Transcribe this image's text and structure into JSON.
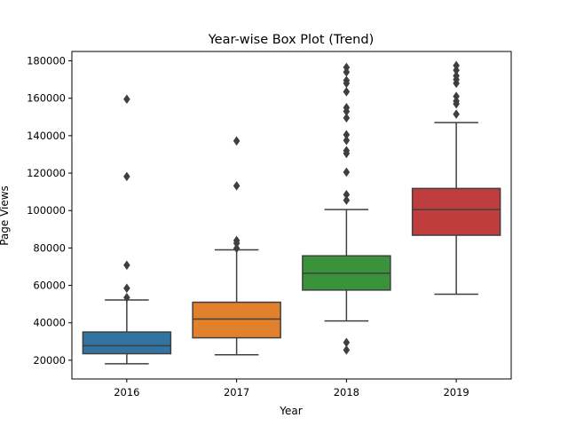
{
  "chart_data": {
    "type": "box",
    "title": "Year-wise Box Plot (Trend)",
    "xlabel": "Year",
    "ylabel": "Page Views",
    "ylim": [
      10000,
      185000
    ],
    "yticks": [
      20000,
      40000,
      60000,
      80000,
      100000,
      120000,
      140000,
      160000,
      180000
    ],
    "grid": false,
    "categories": [
      "2016",
      "2017",
      "2018",
      "2019"
    ],
    "colors": [
      "#3274a1",
      "#e1812c",
      "#3a923a",
      "#c03d3e"
    ],
    "edge_color": "#3f3f3f",
    "boxes": [
      {
        "category": "2016",
        "whisker_low": 18100,
        "q1": 23500,
        "median": 27800,
        "q3": 35100,
        "whisker_high": 52200,
        "outliers": [
          53500,
          58500,
          70800,
          118200,
          159500
        ]
      },
      {
        "category": "2017",
        "whisker_low": 22900,
        "q1": 32000,
        "median": 42000,
        "q3": 51000,
        "whisker_high": 79000,
        "outliers": [
          79800,
          82500,
          84000,
          113200,
          137200
        ]
      },
      {
        "category": "2018",
        "whisker_low": 41000,
        "q1": 57500,
        "median": 66500,
        "q3": 75800,
        "whisker_high": 100500,
        "outliers": [
          25500,
          29500,
          105500,
          108500,
          120500,
          130500,
          132000,
          137500,
          140500,
          149500,
          153000,
          155000,
          163500,
          168000,
          169500,
          174000,
          176500
        ]
      },
      {
        "category": "2019",
        "whisker_low": 55300,
        "q1": 86800,
        "median": 100500,
        "q3": 111800,
        "whisker_high": 147000,
        "outliers": [
          151500,
          157000,
          158500,
          161000,
          168000,
          170000,
          172000,
          175000,
          177500
        ]
      }
    ]
  }
}
